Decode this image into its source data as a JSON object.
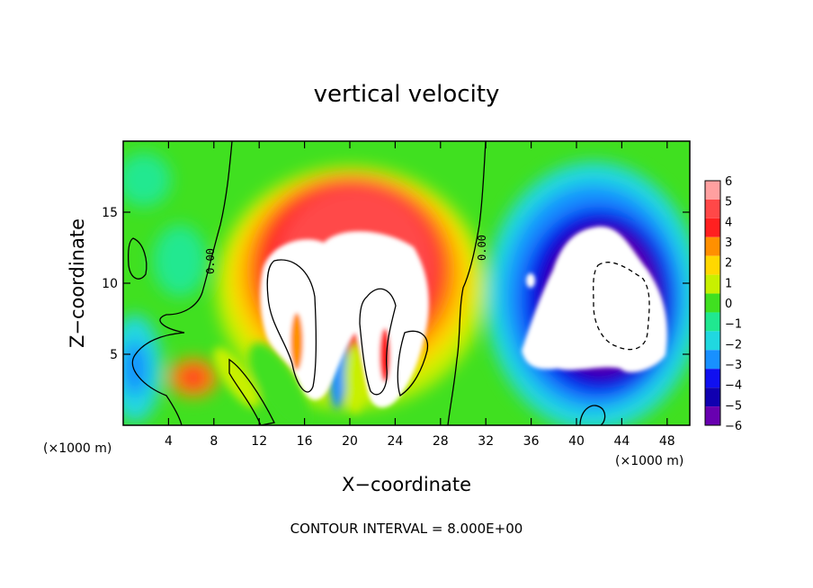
{
  "chart_data": {
    "type": "heatmap",
    "title": "vertical velocity",
    "xlabel": "X−coordinate",
    "ylabel": "Z−coordinate",
    "x_unit": "(×1000 m)",
    "x_unit_right": "(×1000 m)",
    "xlim": [
      0,
      50
    ],
    "ylim": [
      0,
      20
    ],
    "x_ticks": [
      4,
      8,
      12,
      16,
      20,
      24,
      28,
      32,
      36,
      40,
      44,
      48
    ],
    "y_ticks": [
      5,
      10,
      15
    ],
    "colorbar": {
      "levels": [
        6,
        5,
        4,
        3,
        2,
        1,
        0,
        -1,
        -2,
        -3,
        -4,
        -5,
        -6
      ],
      "labels": [
        "6",
        "5",
        "4",
        "3",
        "2",
        "1",
        "0",
        "−1",
        "−2",
        "−3",
        "−4",
        "−5",
        "−6"
      ],
      "colors": [
        "#ffa0a0",
        "#ff4848",
        "#ff2020",
        "#ff9000",
        "#ffd800",
        "#c8f000",
        "#40e020",
        "#20e890",
        "#20d8e0",
        "#1890ff",
        "#1010f0",
        "#1000b0",
        "#6800b0"
      ]
    },
    "contour_labels": [
      {
        "text": "0.00",
        "x": 8,
        "z": 10.5
      },
      {
        "text": "0.00",
        "x": 31,
        "z": 12.5
      }
    ],
    "contour_interval_text": "CONTOUR INTERVAL = 8.000E+00"
  }
}
